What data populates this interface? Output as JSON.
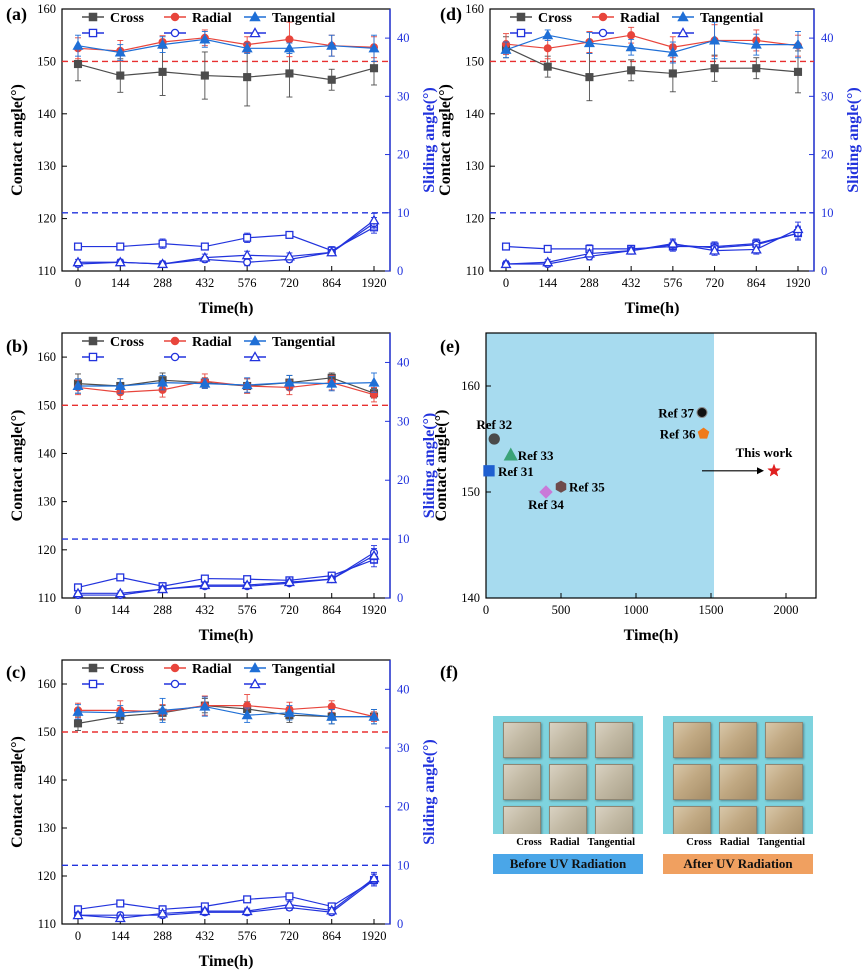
{
  "colors": {
    "cross": "#4d4d4d",
    "radial": "#e8453c",
    "tangential": "#1f6fd6",
    "sliding": "#2233dd",
    "contact_ref": "#e83030",
    "slide_ref": "#2233dd",
    "shade": "#a7dbef"
  },
  "legend": {
    "cross": "Cross",
    "radial": "Radial",
    "tangential": "Tangential"
  },
  "chart_data": [
    {
      "panel": "(a)",
      "type": "line",
      "x": [
        0,
        144,
        288,
        432,
        576,
        720,
        864,
        1920
      ],
      "xticklabels": [
        "0",
        "144",
        "288",
        "432",
        "576",
        "720",
        "864",
        "1920"
      ],
      "xlabel": "Time(h)",
      "ylabel": "Contact angle(°)",
      "y2label": "Sliding angle(°)",
      "ylim": [
        110,
        160
      ],
      "yticks": [
        110,
        120,
        130,
        140,
        150,
        160
      ],
      "y2lim": [
        0,
        45
      ],
      "y2ticks": [
        0,
        10,
        20,
        30,
        40
      ],
      "contact_ref": 150,
      "sliding_ref": 10,
      "contact": {
        "Cross": {
          "values": [
            149.5,
            147.3,
            148,
            147.3,
            147,
            147.7,
            146.5,
            148.7
          ],
          "errors": [
            3.2,
            3.2,
            4.5,
            4.5,
            5.5,
            4.5,
            2,
            3.2
          ]
        },
        "Radial": {
          "values": [
            152.5,
            152,
            153.7,
            154.5,
            153.2,
            154.2,
            153,
            152.7
          ],
          "errors": [
            2,
            2,
            1.2,
            1.5,
            1.5,
            3.3,
            2,
            2
          ]
        },
        "Tangential": {
          "values": [
            153,
            151.7,
            153.2,
            154.2,
            152.5,
            152.5,
            153,
            152.5
          ],
          "errors": [
            2,
            1.5,
            1.5,
            1.5,
            1,
            1,
            2,
            2.5
          ]
        }
      },
      "sliding": {
        "Cross": {
          "values": [
            4.2,
            4.2,
            4.7,
            4.2,
            5.7,
            6.2,
            3.5,
            7.5
          ],
          "errors": [
            0.5,
            0.5,
            0.8,
            0.6,
            0.8,
            0.5,
            0.7,
            1
          ]
        },
        "Radial": {
          "values": [
            1.2,
            1.5,
            1.2,
            2,
            1.5,
            2,
            3.2,
            8.2
          ],
          "errors": [
            0.5,
            0.5,
            0.5,
            0.5,
            0.6,
            0.5,
            0.5,
            1
          ]
        },
        "Tangential": {
          "values": [
            1.5,
            1.5,
            1.2,
            2.3,
            2.7,
            2.5,
            3.2,
            8.7
          ],
          "errors": [
            0.5,
            0.5,
            0.5,
            0.6,
            0.7,
            0.6,
            0.5,
            1.2
          ]
        }
      }
    },
    {
      "panel": "(b)",
      "type": "line",
      "x": [
        0,
        144,
        288,
        432,
        576,
        720,
        864,
        1920
      ],
      "xticklabels": [
        "0",
        "144",
        "288",
        "432",
        "576",
        "720",
        "864",
        "1920"
      ],
      "xlabel": "Time(h)",
      "ylabel": "Contact angle(°)",
      "y2label": "Sliding angle(°)",
      "ylim": [
        110,
        165
      ],
      "yticks": [
        110,
        120,
        130,
        140,
        150,
        160
      ],
      "y2lim": [
        0,
        45
      ],
      "y2ticks": [
        0,
        10,
        20,
        30,
        40
      ],
      "contact_ref": 150,
      "sliding_ref": 10,
      "contact": {
        "Cross": {
          "values": [
            154.5,
            154,
            155.2,
            154.7,
            154,
            154.7,
            155.7,
            152.5
          ],
          "errors": [
            2,
            1.5,
            1.5,
            1,
            1.5,
            1.5,
            1,
            1
          ]
        },
        "Radial": {
          "values": [
            153.7,
            152.7,
            153.2,
            155,
            154,
            153.7,
            154.7,
            152.2
          ],
          "errors": [
            1.5,
            1.5,
            1.5,
            1.5,
            1.5,
            1.5,
            1.5,
            1.5
          ]
        },
        "Tangential": {
          "values": [
            154,
            154,
            154.7,
            154.5,
            154.2,
            154.7,
            154.5,
            154.7
          ],
          "errors": [
            1.5,
            1.5,
            1.5,
            1,
            1.5,
            1.5,
            1.5,
            2
          ]
        }
      },
      "sliding": {
        "Cross": {
          "values": [
            1.8,
            3.5,
            2,
            3.3,
            3.2,
            3,
            3.8,
            6.5
          ],
          "errors": [
            0.6,
            0.4,
            0.6,
            0.4,
            0.4,
            0.4,
            0.4,
            1.2
          ]
        },
        "Radial": {
          "values": [
            0.5,
            0.5,
            1.5,
            2,
            2,
            2.5,
            3.2,
            7.7
          ],
          "errors": [
            0.3,
            0.3,
            0.5,
            0.4,
            0.4,
            0.4,
            0.5,
            1.2
          ]
        },
        "Tangential": {
          "values": [
            0.8,
            0.8,
            1.5,
            2.2,
            2.2,
            2.7,
            3.2,
            7.2
          ],
          "errors": [
            0.4,
            0.4,
            0.5,
            0.4,
            0.4,
            0.5,
            0.5,
            1.2
          ]
        }
      }
    },
    {
      "panel": "(c)",
      "type": "line",
      "x": [
        0,
        144,
        288,
        432,
        576,
        720,
        864,
        1920
      ],
      "xticklabels": [
        "0",
        "144",
        "288",
        "432",
        "576",
        "720",
        "864",
        "1920"
      ],
      "xlabel": "Time(h)",
      "ylabel": "Contact angle(°)",
      "y2label": "Sliding angle(°)",
      "ylim": [
        110,
        165
      ],
      "yticks": [
        110,
        120,
        130,
        140,
        150,
        160
      ],
      "y2lim": [
        0,
        45
      ],
      "y2ticks": [
        0,
        10,
        20,
        30,
        40
      ],
      "contact_ref": 150,
      "sliding_ref": 10,
      "contact": {
        "Cross": {
          "values": [
            151.8,
            153.3,
            154,
            155.5,
            154.8,
            153.5,
            153.2,
            153.2
          ],
          "errors": [
            1.5,
            1.5,
            1.5,
            1.5,
            1.5,
            1.5,
            1.5,
            1.5
          ]
        },
        "Radial": {
          "values": [
            154.5,
            154.5,
            154.2,
            155.5,
            155.5,
            154.7,
            155.3,
            153.2
          ],
          "errors": [
            1.5,
            2,
            1.5,
            2,
            2.3,
            1.5,
            1.2,
            1
          ]
        },
        "Tangential": {
          "values": [
            154.2,
            154,
            154.5,
            155.3,
            153.5,
            154,
            153.2,
            153.2
          ],
          "errors": [
            1.5,
            1.5,
            2.5,
            2,
            1.5,
            1.5,
            1.5,
            1.5
          ]
        }
      },
      "sliding": {
        "Cross": {
          "values": [
            2.5,
            3.5,
            2.5,
            3,
            4.2,
            4.7,
            3,
            7.5
          ],
          "errors": [
            0.6,
            0.5,
            0.6,
            0.5,
            0.5,
            0.6,
            0.5,
            1
          ]
        },
        "Radial": {
          "values": [
            1.5,
            1.5,
            1.5,
            2,
            2,
            2.8,
            2,
            7.5
          ],
          "errors": [
            0.4,
            0.5,
            0.5,
            0.5,
            0.5,
            0.5,
            0.5,
            1
          ]
        },
        "Tangential": {
          "values": [
            1.5,
            1,
            1.8,
            2.2,
            2.2,
            3.3,
            2.3,
            7.8
          ],
          "errors": [
            0.5,
            0.5,
            0.5,
            0.5,
            0.5,
            0.5,
            0.5,
            1
          ]
        }
      }
    },
    {
      "panel": "(d)",
      "type": "line",
      "x": [
        0,
        144,
        288,
        432,
        576,
        720,
        864,
        1920
      ],
      "xticklabels": [
        "0",
        "144",
        "288",
        "432",
        "576",
        "720",
        "864",
        "1920"
      ],
      "xlabel": "Time(h)",
      "ylabel": "Contact angle(°)",
      "y2label": "Sliding angle(°)",
      "ylim": [
        110,
        160
      ],
      "yticks": [
        110,
        120,
        130,
        140,
        150,
        160
      ],
      "y2lim": [
        0,
        45
      ],
      "y2ticks": [
        0,
        10,
        20,
        30,
        40
      ],
      "contact_ref": 150,
      "sliding_ref": 10,
      "contact": {
        "Cross": {
          "values": [
            152.7,
            149,
            147,
            148.3,
            147.7,
            148.7,
            148.7,
            148
          ],
          "errors": [
            2,
            2,
            4.5,
            2,
            3.5,
            2.5,
            2,
            4
          ]
        },
        "Radial": {
          "values": [
            153.3,
            152.5,
            153.7,
            155,
            152.7,
            154,
            154,
            153
          ],
          "errors": [
            2,
            2,
            2,
            1.5,
            2,
            3,
            2,
            2
          ]
        },
        "Tangential": {
          "values": [
            152.2,
            155,
            153.5,
            152.7,
            151.7,
            154,
            153.2,
            153.2
          ],
          "errors": [
            1.5,
            1,
            2,
            1.5,
            2,
            3.5,
            2,
            2.5
          ]
        }
      },
      "sliding": {
        "Cross": {
          "values": [
            4.2,
            3.8,
            3.8,
            3.8,
            4.2,
            4.2,
            4.7,
            6.5
          ],
          "errors": [
            0.5,
            0.5,
            0.7,
            0.6,
            0.8,
            0.8,
            0.8,
            1.2
          ]
        },
        "Radial": {
          "values": [
            1.2,
            1.2,
            2.5,
            3.5,
            4.5,
            4,
            4.5,
            6.5
          ],
          "errors": [
            0.5,
            0.5,
            0.6,
            0.6,
            0.8,
            0.8,
            0.8,
            1
          ]
        },
        "Tangential": {
          "values": [
            1.2,
            1.5,
            3,
            3.5,
            4.7,
            3.5,
            3.7,
            7.2
          ],
          "errors": [
            0.5,
            0.5,
            0.6,
            0.6,
            0.8,
            0.8,
            0.8,
            1.2
          ]
        }
      }
    },
    {
      "panel": "(e)",
      "type": "scatter",
      "xlabel": "Time(h)",
      "ylabel": "Contact angle(°)",
      "xlim": [
        0,
        2200
      ],
      "xticks": [
        0,
        500,
        1000,
        1500,
        2000
      ],
      "ylim": [
        140,
        165
      ],
      "yticks": [
        140,
        150,
        160
      ],
      "shaded_xrange": [
        0,
        1520
      ],
      "points": [
        {
          "label": "Ref 31",
          "x": 20,
          "y": 152,
          "marker": "square",
          "color": "#1f5fd0"
        },
        {
          "label": "Ref 32",
          "x": 55,
          "y": 155,
          "marker": "circle",
          "color": "#4a4a4a"
        },
        {
          "label": "Ref 33",
          "x": 165,
          "y": 153.5,
          "marker": "triangle",
          "color": "#3aa377"
        },
        {
          "label": "Ref 34",
          "x": 400,
          "y": 150,
          "marker": "diamond",
          "color": "#c97ad8"
        },
        {
          "label": "Ref 35",
          "x": 500,
          "y": 150.5,
          "marker": "hexagon",
          "color": "#6e4b4b"
        },
        {
          "label": "Ref 36",
          "x": 1450,
          "y": 155.5,
          "marker": "pentagon",
          "color": "#f07a1a"
        },
        {
          "label": "Ref 37",
          "x": 1440,
          "y": 157.5,
          "marker": "sphere",
          "color": "#111111"
        },
        {
          "label": "This work",
          "x": 1920,
          "y": 152,
          "marker": "star",
          "color": "#e02020"
        }
      ]
    }
  ],
  "panel_f": {
    "label": "(f)",
    "labels_row": [
      "Cross",
      "Radial",
      "Tangential"
    ],
    "before": {
      "banner": "Before UV Radiation",
      "banner_color": "#4aa6e8"
    },
    "after": {
      "banner": "After UV Radiation",
      "banner_color": "#f0a060"
    }
  }
}
